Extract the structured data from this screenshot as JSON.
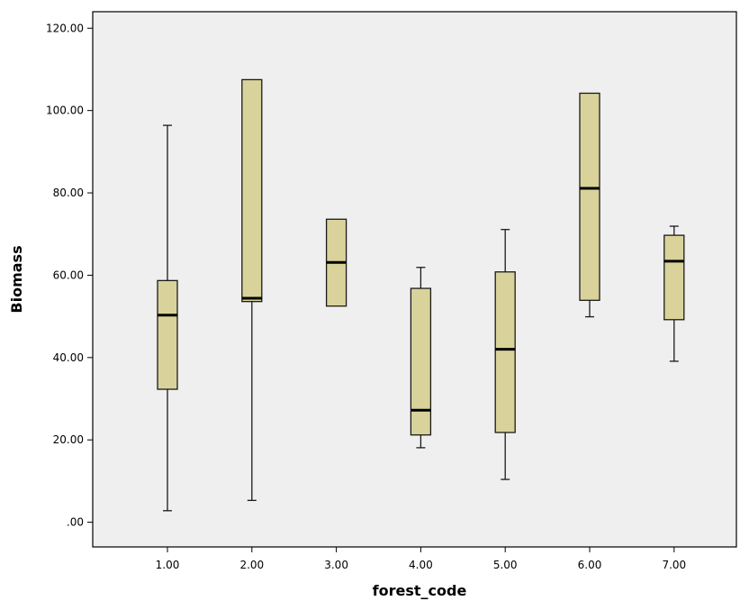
{
  "chart_data": {
    "type": "box",
    "xlabel": "forest_code",
    "ylabel": "Biomass",
    "ylim": [
      -6,
      124
    ],
    "yticks": [
      0,
      20,
      40,
      60,
      80,
      100,
      120
    ],
    "ytick_labels": [
      ".00",
      "20.00",
      "40.00",
      "60.00",
      "80.00",
      "100.00",
      "120.00"
    ],
    "categories": [
      "1.00",
      "2.00",
      "3.00",
      "4.00",
      "5.00",
      "6.00",
      "7.00"
    ],
    "boxes": [
      {
        "min": 2.8,
        "q1": 32.3,
        "median": 50.3,
        "q3": 58.7,
        "max": 96.4
      },
      {
        "min": 5.3,
        "q1": 53.6,
        "median": 54.4,
        "q3": 107.5,
        "max": 107.5
      },
      {
        "min": 52.5,
        "q1": 52.5,
        "median": 63.1,
        "q3": 73.6,
        "max": 73.6
      },
      {
        "min": 18.1,
        "q1": 21.2,
        "median": 27.2,
        "q3": 56.8,
        "max": 61.9
      },
      {
        "min": 10.4,
        "q1": 21.8,
        "median": 42.0,
        "q3": 60.8,
        "max": 71.1
      },
      {
        "min": 49.9,
        "q1": 53.9,
        "median": 81.1,
        "q3": 104.2,
        "max": 104.2
      },
      {
        "min": 39.1,
        "q1": 49.2,
        "median": 63.4,
        "q3": 69.7,
        "max": 71.9
      }
    ],
    "colors": {
      "box_fill": "#d9d39b",
      "plot_bg": "#efefef",
      "line": "#1a1a1a"
    },
    "grid": false,
    "legend": "none"
  }
}
